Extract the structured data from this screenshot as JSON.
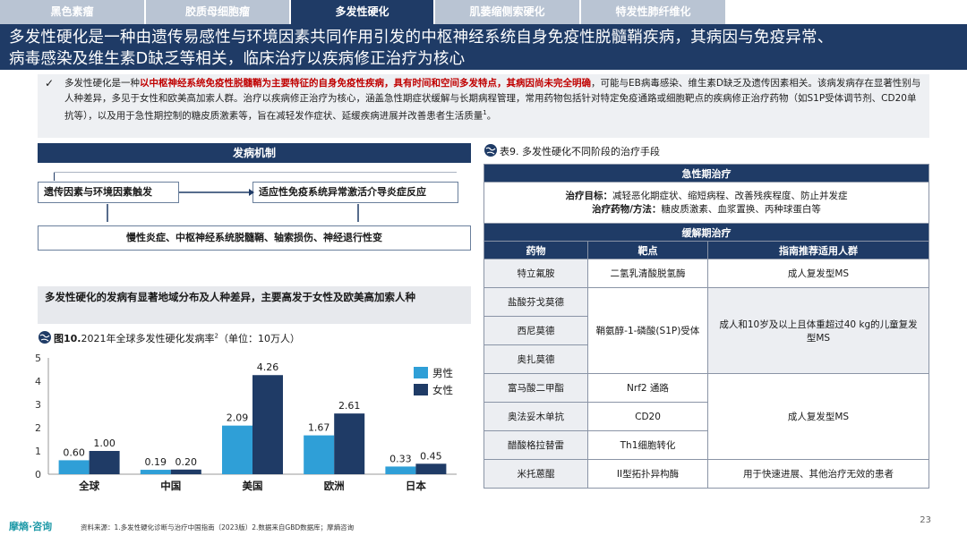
{
  "tabs": [
    {
      "label": "黑色素瘤",
      "active": false
    },
    {
      "label": "胶质母细胞瘤",
      "active": false
    },
    {
      "label": "多发性硬化",
      "active": true
    },
    {
      "label": "肌萎缩侧索硬化",
      "active": false
    },
    {
      "label": "特发性肺纤维化",
      "active": false
    }
  ],
  "title": {
    "line1": "多发性硬化是一种由遗传易感性与环境因素共同作用引发的中枢神经系统自身免疫性脱髓鞘疾病，其病因与免疫异常、",
    "line2": "病毒感染及维生素D缺乏等相关，临床治疗以疾病修正治疗为核心"
  },
  "intro": {
    "check": "✓",
    "p1": "多发性硬化是一种",
    "red1": "以中枢神经系统免疫性脱髓鞘为主要特征的自身免疫性疾病，具有时间和空间多发特点，其病因尚未完全明确",
    "p2": "，可能与EB病毒感染、维生素D缺乏及遗传因素相关。该病发病存在显著性别与人种差异，多见于女性和欧美高加索人群。治疗以疾病修正治疗为核心，涵盖急性期症状缓解与长期病程管理，常用药物包括针对特定免疫通路或细胞靶点的疾病修正治疗药物（如S1P受体调节剂、CD20单抗等），以及用于急性期控制的糖皮质激素等，旨在减轻发作症状、延缓疾病进展并改善患者生活质量",
    "sup": "1",
    "end": "。"
  },
  "mechanism": {
    "header": "发病机制",
    "box1": "遗传因素与环境因素触发",
    "box2": "适应性免疫系统异常激活介导炎症反应",
    "box3": "慢性炎症、中枢神经系统脱髓鞘、轴索损伤、神经退行性变"
  },
  "subhead": "多发性硬化的发病有显著地域分布及人种差异，主要高发于女性及欧美高加索人种",
  "figure": {
    "label": "图10.",
    "caption": "2021年全球多发性硬化发病率",
    "sup": "2",
    "unit": "（单位：10万人）"
  },
  "chart_data": {
    "type": "bar",
    "title": "2021年全球多发性硬化发病率（单位：10万人）",
    "categories": [
      "全球",
      "中国",
      "美国",
      "欧洲",
      "日本"
    ],
    "series": [
      {
        "name": "男性",
        "values": [
          0.6,
          0.19,
          2.09,
          1.67,
          0.33
        ],
        "color": "#2f9fd7"
      },
      {
        "name": "女性",
        "values": [
          1.0,
          0.2,
          4.26,
          2.61,
          0.45
        ],
        "color": "#1f3b66"
      }
    ],
    "ylim": [
      0,
      5
    ],
    "yticks": [
      0,
      1,
      2,
      3,
      4,
      5
    ],
    "value_labels": {
      "male": [
        "0.60",
        "0.19",
        "2.09",
        "1.67",
        "0.33"
      ],
      "female": [
        "1.00",
        "0.20",
        "4.26",
        "2.61",
        "0.45"
      ]
    },
    "legend_position": "right",
    "grid": false
  },
  "table": {
    "caption": "表9. 多发性硬化不同阶段的治疗手段",
    "acute_header": "急性期治疗",
    "goal_label": "治疗目标：",
    "goal_text": "减轻恶化期症状、缩短病程、改善残疾程度、防止并发症",
    "drug_label": "治疗药物/方法：",
    "drug_text": "糖皮质激素、血浆置换、丙种球蛋白等",
    "remission_header": "缓解期治疗",
    "col_drug": "药物",
    "col_target": "靶点",
    "col_population": "指南推荐适用人群",
    "rows": [
      {
        "drug": "特立氟胺",
        "target": "二氢乳清酸脱氢酶",
        "population": "成人复发型MS"
      },
      {
        "drug": "盐酸芬戈莫德",
        "target": "",
        "population": ""
      },
      {
        "drug": "西尼莫德",
        "target": "鞘氨醇-1-磷酸(S1P)受体",
        "population": "成人和10岁及以上且体重超过40 kg的儿童复发型MS"
      },
      {
        "drug": "奥扎莫德",
        "target": "",
        "population": ""
      },
      {
        "drug": "富马酸二甲酯",
        "target": "Nrf2 通路",
        "population": ""
      },
      {
        "drug": "奥法妥木单抗",
        "target": "CD20",
        "population": "成人复发型MS"
      },
      {
        "drug": "醋酸格拉替雷",
        "target": "Th1细胞转化",
        "population": ""
      },
      {
        "drug": "米托蒽醌",
        "target": "II型拓扑异构酶",
        "population": "用于快速进展、其他治疗无效的患者"
      }
    ]
  },
  "footer": {
    "logo": "摩熵·咨询",
    "source": "资料来源：1.多发性硬化诊断与治疗中国指南（2023版）2.数据来自GBD数据库；摩熵咨询",
    "page": "23"
  },
  "colors": {
    "navy": "#1f3b66",
    "tab_inactive": "#b9c4d3",
    "male": "#2f9fd7",
    "female": "#1f3b66",
    "highlight_red": "#c00000"
  }
}
